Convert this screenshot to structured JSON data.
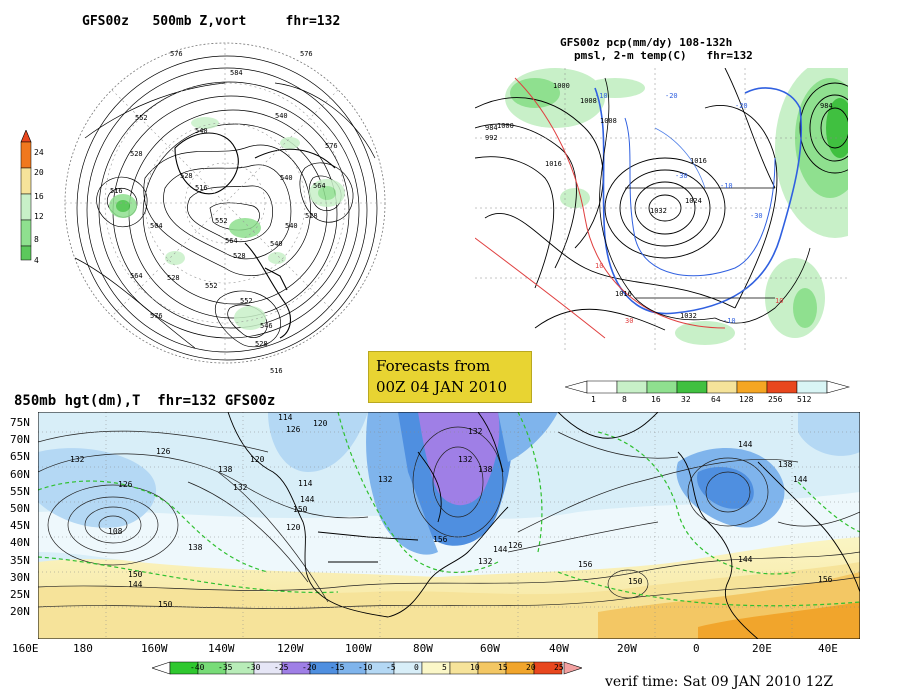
{
  "panel_500mb": {
    "title": "GFS00z   500mb Z,vort     fhr=132",
    "colorbar_ticks": [
      "24",
      "20",
      "16",
      "12",
      "8",
      "4"
    ],
    "contour_labels": [
      "576",
      "584",
      "576",
      "552",
      "540",
      "528",
      "516",
      "504",
      "528",
      "516",
      "540",
      "564",
      "528",
      "540",
      "552",
      "564",
      "528",
      "540",
      "552",
      "546",
      "528",
      "516",
      "576",
      "528",
      "552",
      "540",
      "576",
      "564"
    ]
  },
  "panel_precip": {
    "title_line1": "GFS00z pcp(mm/dy) 108-132h",
    "title_line2": "pmsl, 2-m temp(C)   fhr=132",
    "colorbar_ticks": [
      "1",
      "8",
      "16",
      "32",
      "64",
      "128",
      "256",
      "512"
    ],
    "contour_labels": [
      "1000",
      "1008",
      "984",
      "992",
      "1000",
      "1008",
      "1016",
      "1032",
      "1024",
      "1016",
      "-10",
      "-20",
      "-30",
      "-10",
      "10",
      "-10",
      "10",
      "30",
      "1016",
      "1032",
      "984",
      "-20",
      "-30"
    ]
  },
  "forecast_box": {
    "line1": "Forecasts from",
    "line2": "00Z 04 JAN 2010"
  },
  "panel_850mb": {
    "title": "850mb hgt(dm),T  fhr=132 GFS00z",
    "lat_labels": [
      "75N",
      "70N",
      "65N",
      "60N",
      "55N",
      "50N",
      "45N",
      "40N",
      "35N",
      "30N",
      "25N",
      "20N"
    ],
    "lon_labels": [
      "160E",
      "180",
      "160W",
      "140W",
      "120W",
      "100W",
      "80W",
      "60W",
      "40W",
      "20W",
      "0",
      "20E",
      "40E"
    ],
    "contour_labels": [
      "114",
      "126",
      "120",
      "132",
      "126",
      "120",
      "132",
      "126",
      "114",
      "144",
      "150",
      "138",
      "132",
      "108",
      "156",
      "144",
      "126",
      "132",
      "120",
      "138",
      "144",
      "150",
      "132",
      "156",
      "150",
      "144",
      "138",
      "144",
      "156",
      "132",
      "138",
      "144",
      "150"
    ],
    "colorbar_ticks": [
      "-40",
      "-35",
      "-30",
      "-25",
      "-20",
      "-15",
      "-10",
      "-5",
      "0",
      "5",
      "10",
      "15",
      "20",
      "25"
    ]
  },
  "verif_time": "verif time: Sat 09 JAN 2010 12Z",
  "colors": {
    "precip_scale": [
      "#ffffff",
      "#c8f0c8",
      "#8fe08f",
      "#40c040",
      "#f5e39a",
      "#f5a623",
      "#e8471e",
      "#d9f5f5"
    ],
    "temp_scale": [
      "#2fc82f",
      "#78dc78",
      "#b8ecb8",
      "#e6e6f6",
      "#9f7fe6",
      "#4f8fe0",
      "#7fb4ec",
      "#b4d8f4",
      "#d8eef8",
      "#fbf7c8",
      "#f6e39a",
      "#f3c764",
      "#f1a52c",
      "#e8471e"
    ],
    "vort_scale": [
      "#f0781e",
      "#f6e39a",
      "#c8f0c8",
      "#8fe08f",
      "#5cc85c"
    ]
  }
}
